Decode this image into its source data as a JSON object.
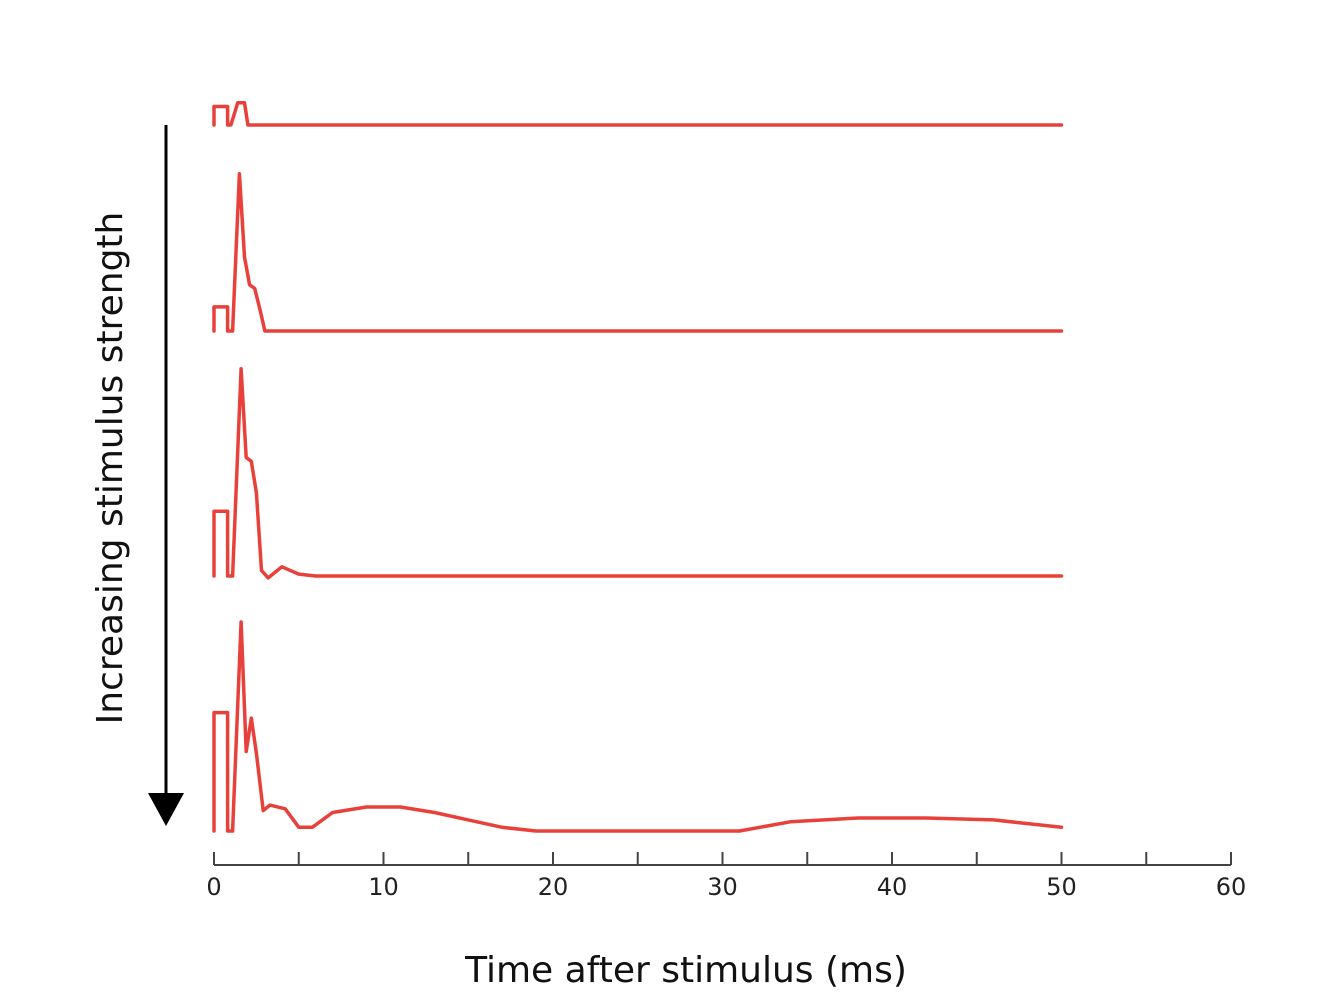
{
  "chart_data": {
    "type": "line",
    "title": "",
    "xlabel": "Time after stimulus (ms)",
    "ylabel": "Increasing stimulus strength",
    "xlim": [
      0,
      60
    ],
    "x_ticks": [
      0,
      10,
      20,
      30,
      40,
      50,
      60
    ],
    "x_minor_ticks": [
      5,
      15,
      25,
      35,
      45,
      55
    ],
    "grid": false,
    "legend": "none",
    "colors": {
      "trace": "#e8403a",
      "axis": "#444444",
      "arrow": "#000000"
    },
    "series": [
      {
        "x": [
          0,
          0,
          0.8,
          0.8,
          1.0,
          1.4,
          1.8,
          2.0,
          50
        ],
        "y": [
          0,
          1,
          1,
          0,
          0,
          1.2,
          1.2,
          0,
          0
        ]
      },
      {
        "x": [
          0,
          0,
          0.8,
          0.8,
          1.1,
          1.5,
          1.8,
          2.1,
          2.4,
          2.7,
          3.0,
          50
        ],
        "y": [
          0,
          1.3,
          1.3,
          0,
          0,
          8.5,
          4.0,
          2.5,
          2.3,
          1.2,
          0,
          0
        ]
      },
      {
        "x": [
          0,
          0,
          0.8,
          0.8,
          1.1,
          1.6,
          1.9,
          2.2,
          2.5,
          2.8,
          3.2,
          4.0,
          5.0,
          6.0,
          50
        ],
        "y": [
          0,
          3.5,
          3.5,
          0,
          0,
          11.2,
          6.4,
          6.2,
          4.5,
          0.3,
          -0.1,
          0.5,
          0.1,
          0,
          0
        ]
      },
      {
        "x": [
          0,
          0,
          0.8,
          0.8,
          1.1,
          1.6,
          1.9,
          2.2,
          2.5,
          2.9,
          3.3,
          4.2,
          5.0,
          5.8,
          7.0,
          9.0,
          11.0,
          13.0,
          15.0,
          17.0,
          19.0,
          25.0,
          31.0,
          34.0,
          38.0,
          42.0,
          46.0,
          50.0
        ],
        "y": [
          0,
          6.4,
          6.4,
          0,
          0,
          11.3,
          4.3,
          6.1,
          4.2,
          1.1,
          1.4,
          1.2,
          0.2,
          0.2,
          1.0,
          1.3,
          1.3,
          1.0,
          0.6,
          0.2,
          0,
          0,
          0,
          0.5,
          0.7,
          0.7,
          0.6,
          0.2
        ]
      }
    ]
  }
}
